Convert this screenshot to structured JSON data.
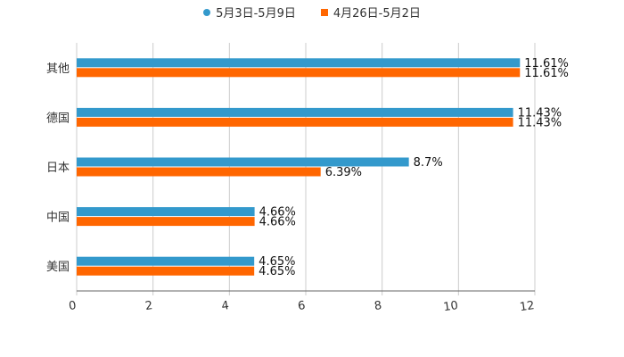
{
  "chart_data": {
    "type": "bar",
    "orientation": "horizontal",
    "categories": [
      "其他",
      "德国",
      "日本",
      "中国",
      "美国"
    ],
    "series": [
      {
        "name": "5月3日-5月9日",
        "color": "#3399cc",
        "values": [
          11.61,
          11.43,
          8.7,
          4.66,
          4.65
        ],
        "labels": [
          "11.61%",
          "11.43%",
          "8.7%",
          "4.66%",
          "4.65%"
        ]
      },
      {
        "name": "4月26日-5月2日",
        "color": "#ff6600",
        "values": [
          11.61,
          11.43,
          6.39,
          4.66,
          4.65
        ],
        "labels": [
          "11.61%",
          "11.43%",
          "6.39%",
          "4.66%",
          "4.65%"
        ]
      }
    ],
    "xlim": [
      0,
      12
    ],
    "xticks": [
      "0",
      "2",
      "4",
      "6",
      "8",
      "10",
      "12"
    ],
    "xtick_values": [
      0,
      2,
      4,
      6,
      8,
      10,
      12
    ],
    "grid": true,
    "legend_position": "top-center"
  }
}
